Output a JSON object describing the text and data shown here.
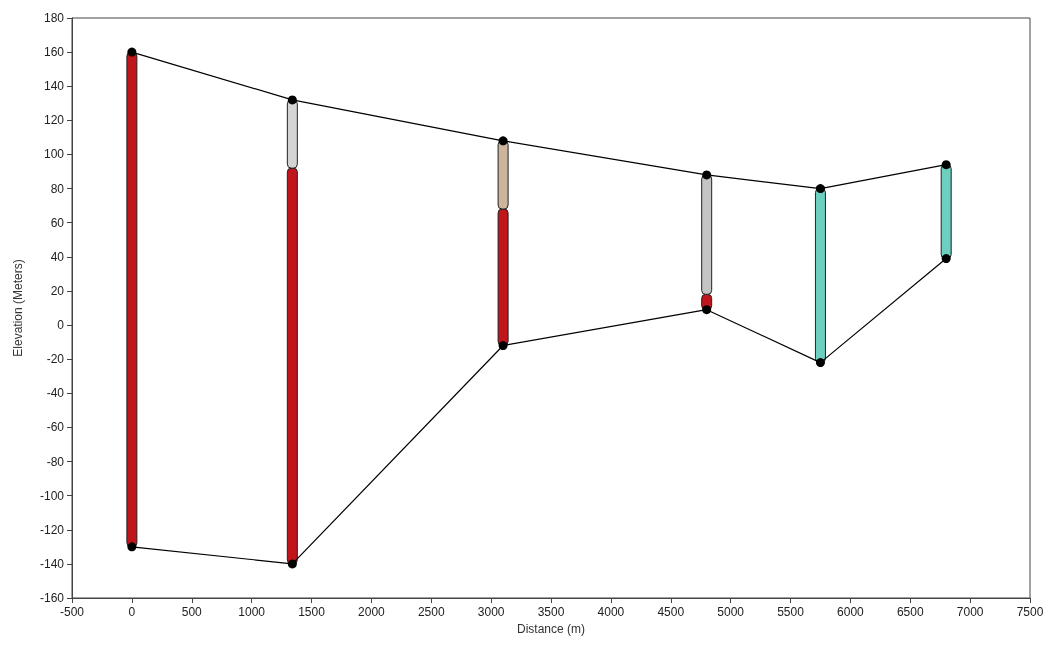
{
  "chart_data": {
    "type": "bar",
    "xlabel": "Distance (m)",
    "ylabel": "Elevation (Meters)",
    "xlim": [
      -500,
      7500
    ],
    "xticks": [
      -500,
      0,
      500,
      1000,
      1500,
      2000,
      2500,
      3000,
      3500,
      4000,
      4500,
      5000,
      5500,
      6000,
      6500,
      7000,
      7500
    ],
    "ylim": [
      -160,
      180
    ],
    "yticks": [
      -160,
      -140,
      -120,
      -100,
      -80,
      -60,
      -40,
      -20,
      0,
      20,
      40,
      60,
      80,
      100,
      120,
      140,
      160,
      180
    ],
    "grid": false,
    "series": [
      {
        "x": [
          0,
          1340,
          3100,
          4800,
          5750,
          6800
        ],
        "base": [
          -130,
          -140,
          -12,
          9,
          -22,
          39
        ],
        "values": [
          290,
          232,
          80,
          9,
          102,
          55
        ],
        "colors": [
          "#c0161b",
          "#c0161b",
          "#c0161b",
          "#c0161b",
          "#6ccfbf",
          "#6ccfbf"
        ]
      },
      {
        "x": [
          1340,
          3100,
          4800
        ],
        "base": [
          92,
          68,
          18
        ],
        "values": [
          40,
          40,
          70
        ],
        "colors": [
          "#d4d4d4",
          "#cdb49c",
          "#c4c4c4"
        ]
      },
      {
        "type": "line",
        "x": [
          0,
          1340,
          3100,
          4800,
          5750,
          6800
        ],
        "values": [
          160,
          132,
          108,
          88,
          80,
          94
        ],
        "color": "#000000",
        "marker": "circle"
      },
      {
        "type": "line",
        "x": [
          0,
          1340,
          3100,
          4800,
          5750,
          6800
        ],
        "values": [
          -130,
          -140,
          -12,
          9,
          -22,
          39
        ],
        "color": "#000000",
        "marker": "circle"
      }
    ]
  }
}
